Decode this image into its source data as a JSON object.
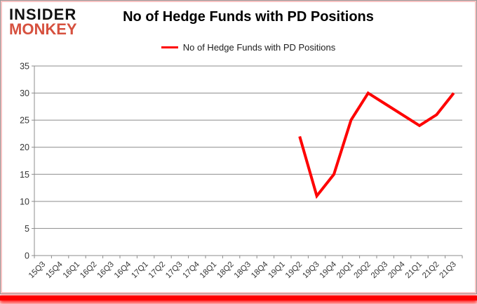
{
  "header": {
    "logo_line1": "INSIDER",
    "logo_line2": "MONKEY"
  },
  "colors": {
    "series_red": "#fe0000",
    "logo_red": "#d6513f",
    "logo_black": "#111111",
    "grid_gray": "#8c8c8c",
    "axis_gray": "#8c8c8c",
    "accent_bar_red": "#fe0000",
    "border_pink": "#f8c3c3"
  },
  "chart_data": {
    "type": "line",
    "title": "No of Hedge Funds with PD Positions",
    "xlabel": "",
    "ylabel": "",
    "ylim": [
      0,
      35
    ],
    "ytick_step": 5,
    "grid": true,
    "legend_position": "top",
    "categories": [
      "15Q3",
      "15Q4",
      "16Q1",
      "16Q2",
      "16Q3",
      "16Q4",
      "17Q1",
      "17Q2",
      "17Q3",
      "17Q4",
      "18Q1",
      "18Q2",
      "18Q3",
      "18Q4",
      "19Q1",
      "19Q2",
      "19Q3",
      "19Q4",
      "20Q1",
      "20Q2",
      "20Q3",
      "20Q4",
      "21Q1",
      "21Q2",
      "21Q3"
    ],
    "series": [
      {
        "name": "No of Hedge Funds with PD Positions",
        "color": "#fe0000",
        "values": [
          null,
          null,
          null,
          null,
          null,
          null,
          null,
          null,
          null,
          null,
          null,
          null,
          null,
          null,
          null,
          22,
          11,
          15,
          25,
          30,
          28,
          26,
          24,
          26,
          30
        ]
      }
    ]
  }
}
